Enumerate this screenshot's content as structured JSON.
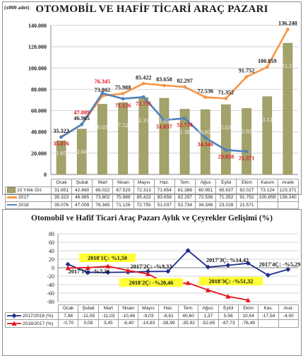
{
  "charts": [
    {
      "title": "OTOMOBİL VE HAFİF TİCARİ ARAÇ PAZARI",
      "unit": "(x000 adet)",
      "type": "bar+line",
      "categories": [
        "Ocak",
        "Şubat",
        "Mart",
        "Nisan",
        "Mayıs",
        "Haz.",
        "Tem.",
        "Ağus",
        "Eylül",
        "Ekim",
        "Kasım",
        "Aralık"
      ],
      "ylim": [
        0,
        140000
      ],
      "yticks": [
        "0",
        "20.000",
        "40.000",
        "60.000",
        "80.000",
        "100.000",
        "120.000",
        "140.000"
      ],
      "series": [
        {
          "name": "10 Yıllık Ort.",
          "kind": "bar",
          "color": "#a3a26a",
          "values": [
            31651,
            42660,
            66022,
            67529,
            72313,
            71654,
            61386,
            60951,
            65637,
            62027,
            73124,
            123371
          ],
          "labels": [
            "31.651",
            "42.660",
            "66.022",
            "67.529",
            "72.313",
            "71.654",
            "61.386",
            "60.951",
            "65.637",
            "62.027",
            "73.124",
            "123.371"
          ]
        },
        {
          "name": "2017",
          "kind": "line",
          "color": "#f79646",
          "values": [
            35323,
            46965,
            73802,
            75988,
            85422,
            83658,
            82297,
            72536,
            71352,
            91752,
            100859,
            136240
          ],
          "labels": [
            "35.323",
            "46.965",
            "73.802",
            "75.988",
            "85.422",
            "83.658",
            "82.297",
            "72.536",
            "71.352",
            "91.752",
            "100.859",
            "136.240"
          ]
        },
        {
          "name": "2018",
          "kind": "line",
          "color": "#4f81bd",
          "values": [
            35076,
            47009,
            76345,
            71126,
            72755,
            51037,
            52734,
            34346,
            23028,
            21571,
            null,
            null
          ],
          "labels": [
            "35.076",
            "47.009",
            "76.345",
            "71.126",
            "72.755",
            "51.037",
            "52.734",
            "34.346",
            "23.028",
            "21.571",
            "",
            ""
          ]
        }
      ]
    },
    {
      "title": "Otomobil ve Hafif Ticari Araç Pazarı Aylık ve Çeyrekler Gelişimi (%)",
      "type": "line",
      "categories": [
        "Ocak",
        "Şubat",
        "Mart",
        "Nisan",
        "Mayıs",
        "Haz.",
        "Tem.",
        "Ağus.",
        "Eylül",
        "Ekim",
        "Kas.",
        "Aral."
      ],
      "ylim": [
        -80,
        80
      ],
      "yticks": [
        "-80",
        "-60",
        "-40",
        "-20",
        "0",
        "20",
        "40",
        "60",
        "80"
      ],
      "series": [
        {
          "name": "2017/2016 (%)",
          "color": "#1f2d8c",
          "values": [
            7.98,
            -11.09,
            -11.03,
            -10.48,
            -9.03,
            -8.61,
            40.6,
            1.37,
            5.56,
            10.54,
            -17.54,
            -4.0
          ],
          "labels": [
            "7,98",
            "-11,09",
            "-11,03",
            "-10,48",
            "-9,03",
            "-8,61",
            "40,60",
            "1,37",
            "5,56",
            "10,54",
            "-17,54",
            "-4,00"
          ]
        },
        {
          "name": "2018/2017 (%)",
          "color": "#e8141c",
          "values": [
            -0.7,
            0.09,
            3.45,
            -6.4,
            -14.83,
            -38.99,
            -35.92,
            -52.65,
            -67.73,
            -76.49,
            null,
            null
          ],
          "labels": [
            "-0,70",
            "0,09",
            "3,45",
            "-6,40",
            "-14,83",
            "-38,99",
            "-35,92",
            "-52,65",
            "-67,73",
            "-76,49",
            "",
            ""
          ]
        }
      ],
      "annotations": {
        "q1_2018": "2018'1Ç: %1,50",
        "q2_2018": "2018'2Ç: -%20,46",
        "q3_2018": "2018'3Ç: -%51,32",
        "q1_2017": "2017'1Ç: -%7,36",
        "q2_2017": "2017'2Ç: -%9,33",
        "q3_2017": "2017'3Ç: %14,42",
        "q4_2017": "2017'4Ç: -%5,29"
      }
    }
  ]
}
